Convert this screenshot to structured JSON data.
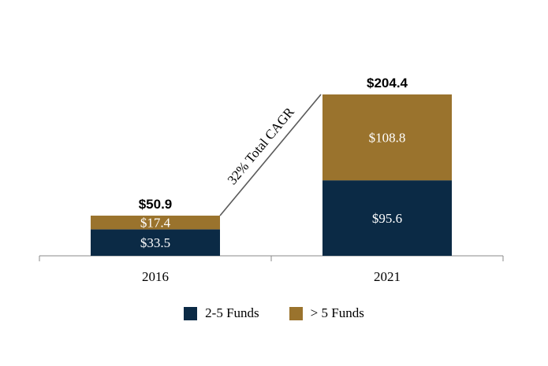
{
  "chart_data": {
    "type": "bar",
    "stacked": true,
    "categories": [
      "2016",
      "2021"
    ],
    "series": [
      {
        "name": "2-5 Funds",
        "values": [
          33.5,
          95.6
        ],
        "value_labels": [
          "$33.5",
          "$95.6"
        ],
        "color": "#0b2a45"
      },
      {
        "name": "> 5 Funds",
        "values": [
          17.4,
          108.8
        ],
        "value_labels": [
          "$17.4",
          "$108.8"
        ],
        "color": "#9a732d"
      }
    ],
    "totals": [
      50.9,
      204.4
    ],
    "total_labels": [
      "$50.9",
      "$204.4"
    ],
    "annotation": "32% Total CAGR",
    "title": "",
    "xlabel": "",
    "ylabel": "",
    "legend_position": "bottom",
    "grid": false
  }
}
